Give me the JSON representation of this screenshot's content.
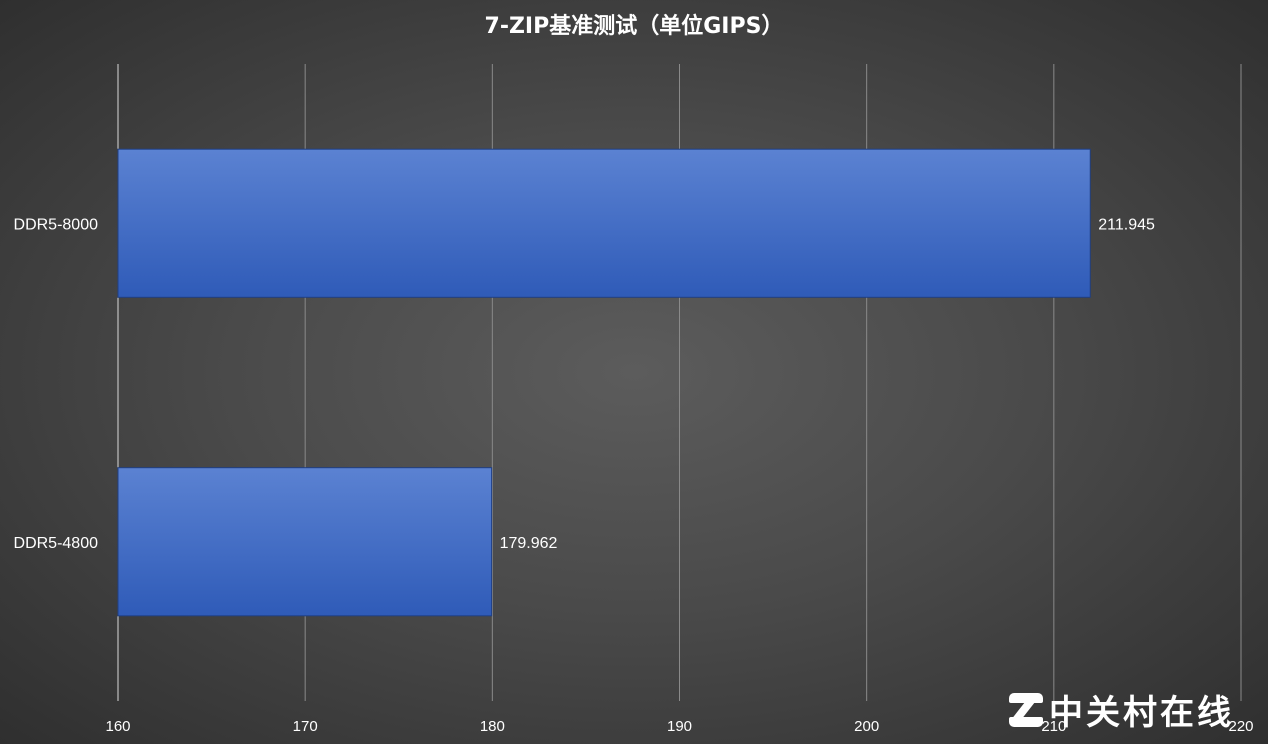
{
  "chart_data": {
    "type": "bar",
    "orientation": "horizontal",
    "title": "7-ZIP基准测试（单位GIPS）",
    "categories": [
      "DDR5-8000",
      "DDR5-4800"
    ],
    "values": [
      211.945,
      179.962
    ],
    "value_labels": [
      "211.945",
      "179.962"
    ],
    "xlim": [
      160,
      220
    ],
    "xticks": [
      "160",
      "170",
      "180",
      "190",
      "200",
      "210",
      "220"
    ],
    "grid": "vertical",
    "colors": {
      "bar_top": "#5b82d2",
      "bar_bottom": "#2f5bb8",
      "grid": "#8a8a8a",
      "axis": "#d9d9d9"
    }
  },
  "watermark": {
    "text": "中关村在线",
    "icon": "zol-logo-icon"
  }
}
